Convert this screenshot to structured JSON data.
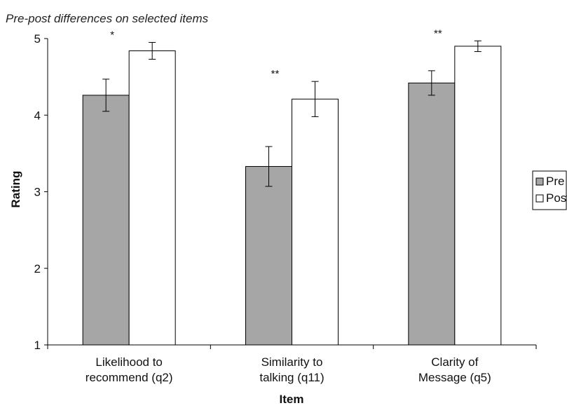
{
  "chart_data": {
    "type": "bar",
    "title": "Pre-post differences on selected items",
    "xlabel": "Item",
    "ylabel": "Rating",
    "ylim": [
      1,
      5
    ],
    "yticks": [
      "1",
      "2",
      "3",
      "4",
      "5"
    ],
    "categories": [
      [
        "Likelihood to",
        "recommend (q2)"
      ],
      [
        "Similarity to",
        "talking (q11)"
      ],
      [
        "Clarity of",
        "Message (q5)"
      ]
    ],
    "series": [
      {
        "name": "Pre",
        "color": "#a6a6a6",
        "values": [
          4.26,
          3.33,
          4.42
        ],
        "error_low": [
          4.05,
          3.07,
          4.26
        ],
        "error_high": [
          4.47,
          3.59,
          4.58
        ]
      },
      {
        "name": "Post",
        "color": "#ffffff",
        "values": [
          4.84,
          4.21,
          4.9
        ],
        "error_low": [
          4.73,
          3.98,
          4.83
        ],
        "error_high": [
          4.95,
          4.44,
          4.97
        ]
      }
    ],
    "significance": [
      "*",
      "**",
      "**"
    ],
    "legend_position": "right",
    "grid": false
  }
}
